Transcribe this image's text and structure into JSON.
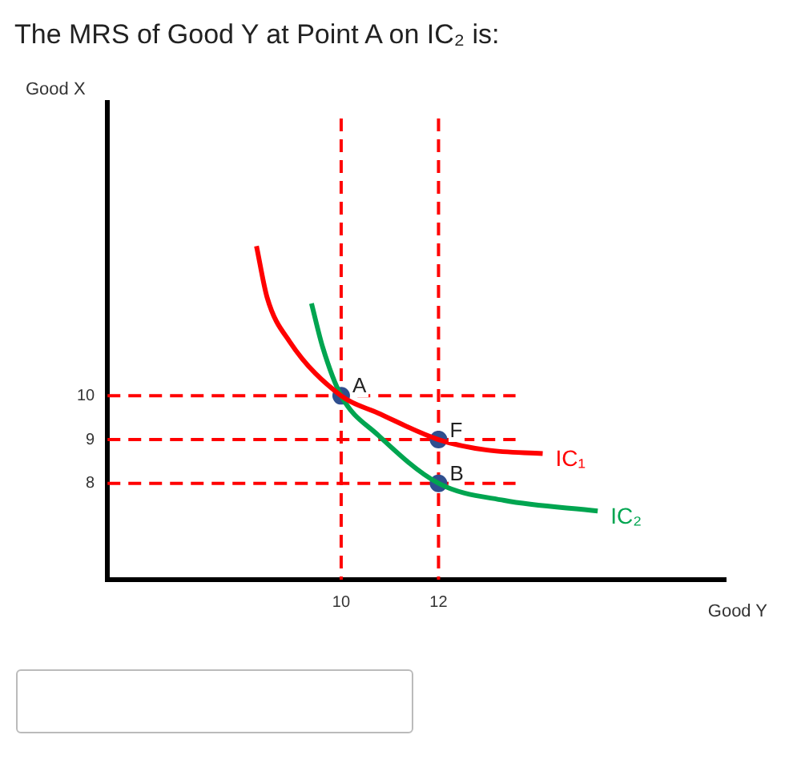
{
  "chart_data": {
    "type": "line",
    "title": "The MRS of Good Y at Point A on IC₂ is:",
    "xlabel": "Good Y",
    "ylabel": "Good X",
    "xlim": [
      5.2,
      17.9
    ],
    "ylim": [
      5.8,
      16.7
    ],
    "xticks": [
      10,
      12
    ],
    "yticks": [
      8,
      9,
      10
    ],
    "grid": false,
    "legend": false,
    "series": [
      {
        "name": "IC₁",
        "color": "#ff0000",
        "marker": "none",
        "x": [
          8.26,
          8.48,
          8.94,
          10,
          10.75,
          12,
          13.0,
          14.14
        ],
        "values": [
          13.42,
          12.24,
          11.24,
          10,
          9.61,
          9,
          8.76,
          8.68
        ]
      },
      {
        "name": "IC₂",
        "color": "#00a550",
        "marker": "none",
        "x": [
          9.39,
          9.62,
          10,
          10.75,
          12,
          13.35,
          15.27
        ],
        "values": [
          12.11,
          11.11,
          10,
          9.11,
          8,
          7.61,
          7.37
        ]
      },
      {
        "type": "scatter",
        "color": "#2f4f8f",
        "marker": "circle",
        "x": [
          10,
          12,
          12
        ],
        "values": [
          10,
          9,
          8
        ],
        "value_labels": [
          "A",
          "F",
          "B"
        ]
      }
    ],
    "ref_lines": [
      {
        "axis": "y",
        "value": 10,
        "color": "#ff0000",
        "line_style": "dashed"
      },
      {
        "axis": "y",
        "value": 9,
        "color": "#ff0000",
        "line_style": "dashed"
      },
      {
        "axis": "y",
        "value": 8,
        "color": "#ff0000",
        "line_style": "dashed"
      },
      {
        "axis": "x",
        "value": 10,
        "color": "#ff0000",
        "line_style": "dashed"
      },
      {
        "axis": "x",
        "value": 12,
        "color": "#ff0000",
        "line_style": "dashed"
      }
    ]
  }
}
